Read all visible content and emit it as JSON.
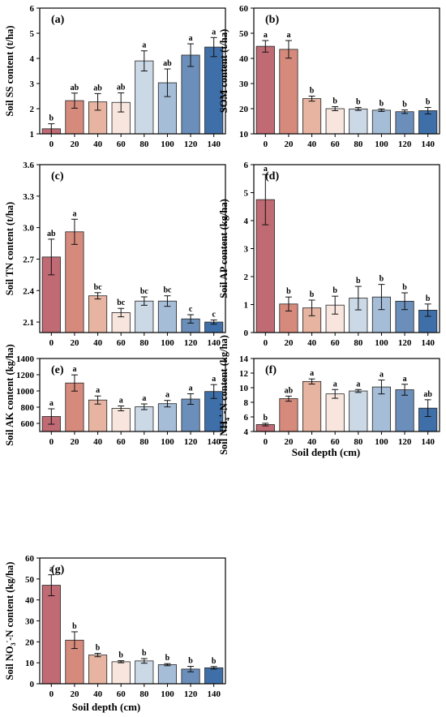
{
  "figure": {
    "shared_xlabel_right": "Soil depth (cm)",
    "shared_xlabel_bottom": "Soil depth (cm)"
  },
  "colors": [
    "#c06a73",
    "#d58a7c",
    "#e7b4a1",
    "#f8e6de",
    "#cbd8e6",
    "#a5bdd7",
    "#6b8fba",
    "#3f6fa8"
  ],
  "chart_data": [
    {
      "type": "bar",
      "panel": "(a)",
      "ylabel": "Soil SS content (t/ha)",
      "xlabel": "",
      "categories": [
        "0",
        "20",
        "40",
        "60",
        "80",
        "100",
        "120",
        "140"
      ],
      "values": [
        1.2,
        2.32,
        2.27,
        2.25,
        3.9,
        3.03,
        4.13,
        4.45
      ],
      "errors": [
        0.2,
        0.3,
        0.33,
        0.38,
        0.4,
        0.55,
        0.45,
        0.38
      ],
      "letters": [
        "b",
        "ab",
        "ab",
        "ab",
        "a",
        "ab",
        "a",
        "a"
      ],
      "ylim": [
        1,
        6
      ],
      "yticks": [
        1,
        2,
        3,
        4,
        5,
        6
      ],
      "ytick_labels": [
        "1",
        "2",
        "3",
        "4",
        "5",
        "6"
      ]
    },
    {
      "type": "bar",
      "panel": "(b)",
      "ylabel": "SOM content (t/ha)",
      "xlabel": "",
      "categories": [
        "0",
        "20",
        "40",
        "60",
        "80",
        "100",
        "120",
        "140"
      ],
      "values": [
        44.8,
        43.6,
        24.0,
        20.0,
        19.9,
        19.4,
        18.8,
        19.2
      ],
      "errors": [
        2.3,
        3.5,
        1.0,
        0.8,
        0.6,
        0.5,
        0.7,
        1.3
      ],
      "letters": [
        "a",
        "a",
        "b",
        "b",
        "b",
        "b",
        "b",
        "b"
      ],
      "ylim": [
        10,
        60
      ],
      "yticks": [
        10,
        20,
        30,
        40,
        50,
        60
      ],
      "ytick_labels": [
        "10",
        "20",
        "30",
        "40",
        "50",
        "60"
      ]
    },
    {
      "type": "bar",
      "panel": "(c)",
      "ylabel": "Soil TN content (t/ha)",
      "xlabel": "",
      "categories": [
        "0",
        "20",
        "40",
        "60",
        "80",
        "100",
        "120",
        "140"
      ],
      "values": [
        2.72,
        2.96,
        2.35,
        2.19,
        2.3,
        2.3,
        2.13,
        2.1
      ],
      "errors": [
        0.17,
        0.12,
        0.03,
        0.04,
        0.04,
        0.05,
        0.04,
        0.02
      ],
      "letters": [
        "ab",
        "a",
        "bc",
        "bc",
        "bc",
        "bc",
        "c",
        "c"
      ],
      "ylim": [
        2.0,
        3.6
      ],
      "yticks": [
        2.1,
        2.4,
        2.7,
        3.0,
        3.3,
        3.6
      ],
      "ytick_labels": [
        "2.1",
        "2.4",
        "2.7",
        "3.0",
        "3.3",
        "3.6"
      ]
    },
    {
      "type": "bar",
      "panel": "(d)",
      "ylabel": "Soil AP content (kg/ha)",
      "xlabel": "",
      "categories": [
        "0",
        "20",
        "40",
        "60",
        "80",
        "100",
        "120",
        "140"
      ],
      "values": [
        4.75,
        1.02,
        0.88,
        0.98,
        1.23,
        1.27,
        1.12,
        0.8
      ],
      "errors": [
        0.9,
        0.25,
        0.28,
        0.32,
        0.42,
        0.45,
        0.3,
        0.22
      ],
      "letters": [
        "a",
        "b",
        "b",
        "b",
        "b",
        "b",
        "b",
        "b"
      ],
      "ylim": [
        0,
        6
      ],
      "yticks": [
        0,
        1,
        2,
        3,
        4,
        5,
        6
      ],
      "ytick_labels": [
        "0",
        "1",
        "2",
        "3",
        "4",
        "5",
        "6"
      ]
    },
    {
      "type": "bar",
      "panel": "(e)",
      "ylabel": "Soil AK content (kg/ha)",
      "xlabel": "",
      "categories": [
        "0",
        "20",
        "40",
        "60",
        "80",
        "100",
        "120",
        "140"
      ],
      "values": [
        685,
        1098,
        888,
        785,
        805,
        843,
        900,
        993
      ],
      "errors": [
        95,
        100,
        50,
        30,
        35,
        40,
        65,
        85
      ],
      "letters": [
        "a",
        "a",
        "a",
        "a",
        "a",
        "a",
        "a",
        "a"
      ],
      "ylim": [
        500,
        1400
      ],
      "yticks": [
        600,
        800,
        1000,
        1200,
        1400
      ],
      "ytick_labels": [
        "600",
        "800",
        "1000",
        "1200",
        "1400"
      ]
    },
    {
      "type": "bar",
      "panel": "(f)",
      "ylabel_parts": [
        "Soil NH",
        "4",
        "+",
        "-N content (kg/ha)"
      ],
      "xlabel": "Soil depth (cm)",
      "categories": [
        "0",
        "20",
        "40",
        "60",
        "80",
        "100",
        "120",
        "140"
      ],
      "values": [
        4.95,
        8.5,
        10.85,
        9.15,
        9.55,
        10.1,
        9.72,
        7.2
      ],
      "errors": [
        0.18,
        0.35,
        0.35,
        0.6,
        0.2,
        0.95,
        0.75,
        1.15
      ],
      "letters": [
        "b",
        "ab",
        "a",
        "a",
        "a",
        "a",
        "a",
        "ab"
      ],
      "ylim": [
        4,
        14
      ],
      "yticks": [
        4,
        6,
        8,
        10,
        12,
        14
      ],
      "ytick_labels": [
        "4",
        "6",
        "8",
        "10",
        "12",
        "14"
      ]
    },
    {
      "type": "bar",
      "panel": "(g)",
      "ylabel_parts": [
        "Soil NO",
        "3",
        "-",
        "-N content (kg/ha)"
      ],
      "xlabel": "Soil depth (cm)",
      "categories": [
        "0",
        "20",
        "40",
        "60",
        "80",
        "100",
        "120",
        "140"
      ],
      "values": [
        47,
        20.8,
        13.7,
        10.5,
        10.9,
        9.1,
        7.0,
        7.6
      ],
      "errors": [
        5.0,
        4.0,
        0.8,
        0.5,
        1.1,
        0.5,
        1.3,
        0.6
      ],
      "letters": [
        "a",
        "b",
        "b",
        "b",
        "b",
        "b",
        "b",
        "b"
      ],
      "ylim": [
        0,
        60
      ],
      "yticks": [
        0,
        10,
        20,
        30,
        40,
        50,
        60
      ],
      "ytick_labels": [
        "0",
        "10",
        "20",
        "30",
        "40",
        "50",
        "60"
      ]
    }
  ]
}
